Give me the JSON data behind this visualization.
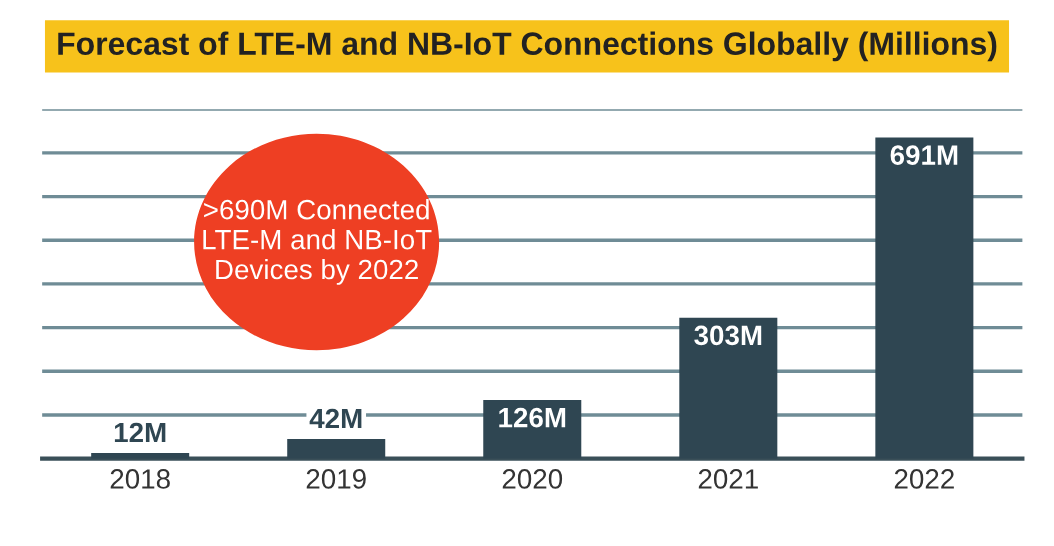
{
  "chart_data": {
    "type": "bar",
    "title": "Forecast of LTE-M and NB-IoT Connections Globally (Millions)",
    "categories": [
      "2018",
      "2019",
      "2020",
      "2021",
      "2022"
    ],
    "values": [
      12,
      42,
      126,
      303,
      691
    ],
    "value_labels": [
      "12M",
      "42M",
      "126M",
      "303M",
      "691M"
    ],
    "color": "#2f4652",
    "ylim": [
      0,
      752
    ],
    "yticks": [
      {
        "value": 94,
        "label": null
      },
      {
        "value": 188,
        "label": null
      },
      {
        "value": 282,
        "label": null
      },
      {
        "value": 376,
        "label": null
      },
      {
        "value": 470,
        "label": null
      },
      {
        "value": 564,
        "label": null
      },
      {
        "value": 658,
        "label": null
      },
      {
        "value": 752,
        "label": null
      }
    ],
    "grid": "y",
    "tick_labels": "x",
    "annotations": [
      ">690M Connected\nLTE-M and NB-IoT\nDevices by 2022"
    ]
  }
}
